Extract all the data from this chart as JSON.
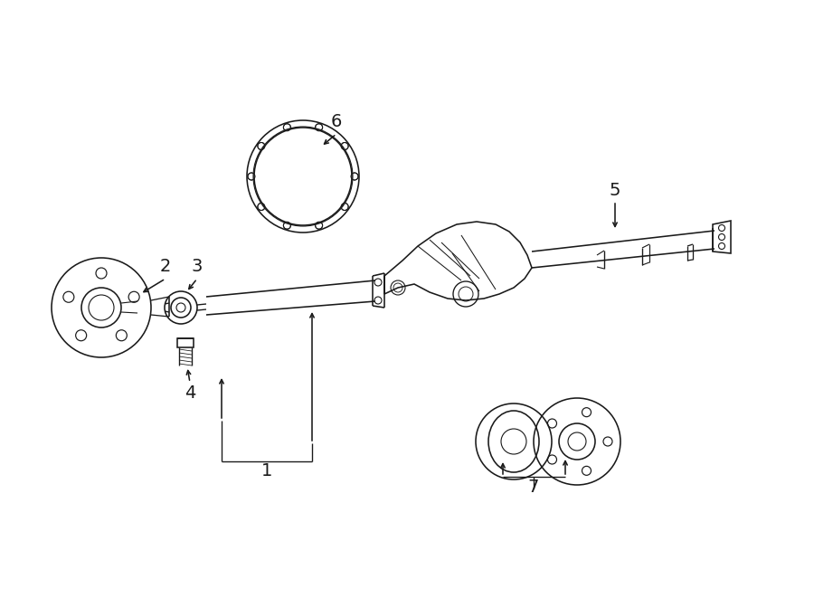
{
  "bg_color": "#ffffff",
  "line_color": "#1a1a1a",
  "fig_width": 9.0,
  "fig_height": 6.61,
  "dpi": 100,
  "label_fontsize": 13,
  "lw": 1.15,
  "axle_tilt": 0.055
}
